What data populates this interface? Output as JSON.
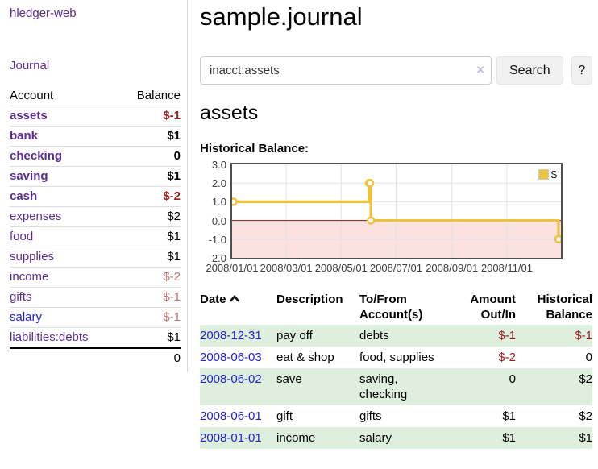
{
  "sidebar": {
    "brand": "hledger-web",
    "journal_link": "Journal",
    "accounts_table": {
      "headers": {
        "account": "Account",
        "balance": "Balance"
      },
      "rows": [
        {
          "name": "assets",
          "indent": 0,
          "balance": "$-1",
          "bold": true
        },
        {
          "name": "bank",
          "indent": 1,
          "balance": "$1",
          "bold": true
        },
        {
          "name": "checking",
          "indent": 2,
          "balance": "0",
          "bold": true
        },
        {
          "name": "saving",
          "indent": 2,
          "balance": "$1",
          "bold": true
        },
        {
          "name": "cash",
          "indent": 1,
          "balance": "$-2",
          "bold": true
        },
        {
          "name": "expenses",
          "indent": 0,
          "balance": "$2",
          "bold": false
        },
        {
          "name": "food",
          "indent": 1,
          "balance": "$1",
          "bold": false
        },
        {
          "name": "supplies",
          "indent": 1,
          "balance": "$1",
          "bold": false
        },
        {
          "name": "income",
          "indent": 0,
          "balance": "$-2",
          "bold": false
        },
        {
          "name": "gifts",
          "indent": 1,
          "balance": "$-1",
          "bold": false
        },
        {
          "name": "salary",
          "indent": 1,
          "balance": "$-1",
          "bold": false,
          "link_color": "blue"
        },
        {
          "name": "liabilities:debts",
          "indent": 0,
          "balance": "$1",
          "bold": false
        }
      ],
      "total": "0"
    }
  },
  "header": {
    "title": "sample.journal"
  },
  "search": {
    "value": "inacct:assets",
    "clear_icon": "×",
    "button_label": "Search",
    "help_label": "?"
  },
  "account_page": {
    "heading": "assets",
    "chart_title": "Historical Balance:"
  },
  "chart_data": {
    "type": "line",
    "step": true,
    "title": "Historical Balance of assets",
    "ylim": [
      -2,
      3
    ],
    "yticks": [
      "3.0",
      "2.0",
      "1.0",
      "0.0",
      "-1.0",
      "-2.0"
    ],
    "xticks": [
      "2008/01/01",
      "2008/03/01",
      "2008/05/01",
      "2008/07/01",
      "2008/09/01",
      "2008/11/01"
    ],
    "grid": true,
    "legend": {
      "label": "$",
      "position": "top-right"
    },
    "series": [
      {
        "name": "$",
        "color": "#edc240",
        "points": [
          {
            "x": "2008/01/01",
            "y": 1
          },
          {
            "x": "2008/06/01",
            "y": 2
          },
          {
            "x": "2008/06/02",
            "y": 2
          },
          {
            "x": "2008/06/03",
            "y": 0
          },
          {
            "x": "2008/12/31",
            "y": -1
          }
        ]
      }
    ],
    "negative_region_fill": "#fce1e1",
    "zero_line_color": "#8b1a1a"
  },
  "register_table": {
    "headers": {
      "date": "Date",
      "description": "Description",
      "accounts": "To/From Account(s)",
      "amount": "Amount Out/In",
      "balance": "Historical Balance"
    },
    "rows": [
      {
        "date": "2008-12-31",
        "description": "pay off",
        "accounts": "debts",
        "amount": "$-1",
        "balance": "$-1"
      },
      {
        "date": "2008-06-03",
        "description": "eat & shop",
        "accounts": "food, supplies",
        "amount": "$-2",
        "balance": "0"
      },
      {
        "date": "2008-06-02",
        "description": "save",
        "accounts": "saving, checking",
        "amount": "0",
        "balance": "$2"
      },
      {
        "date": "2008-06-01",
        "description": "gift",
        "accounts": "gifts",
        "amount": "$1",
        "balance": "$2"
      },
      {
        "date": "2008-01-01",
        "description": "income",
        "accounts": "salary",
        "amount": "$1",
        "balance": "$1"
      }
    ]
  }
}
